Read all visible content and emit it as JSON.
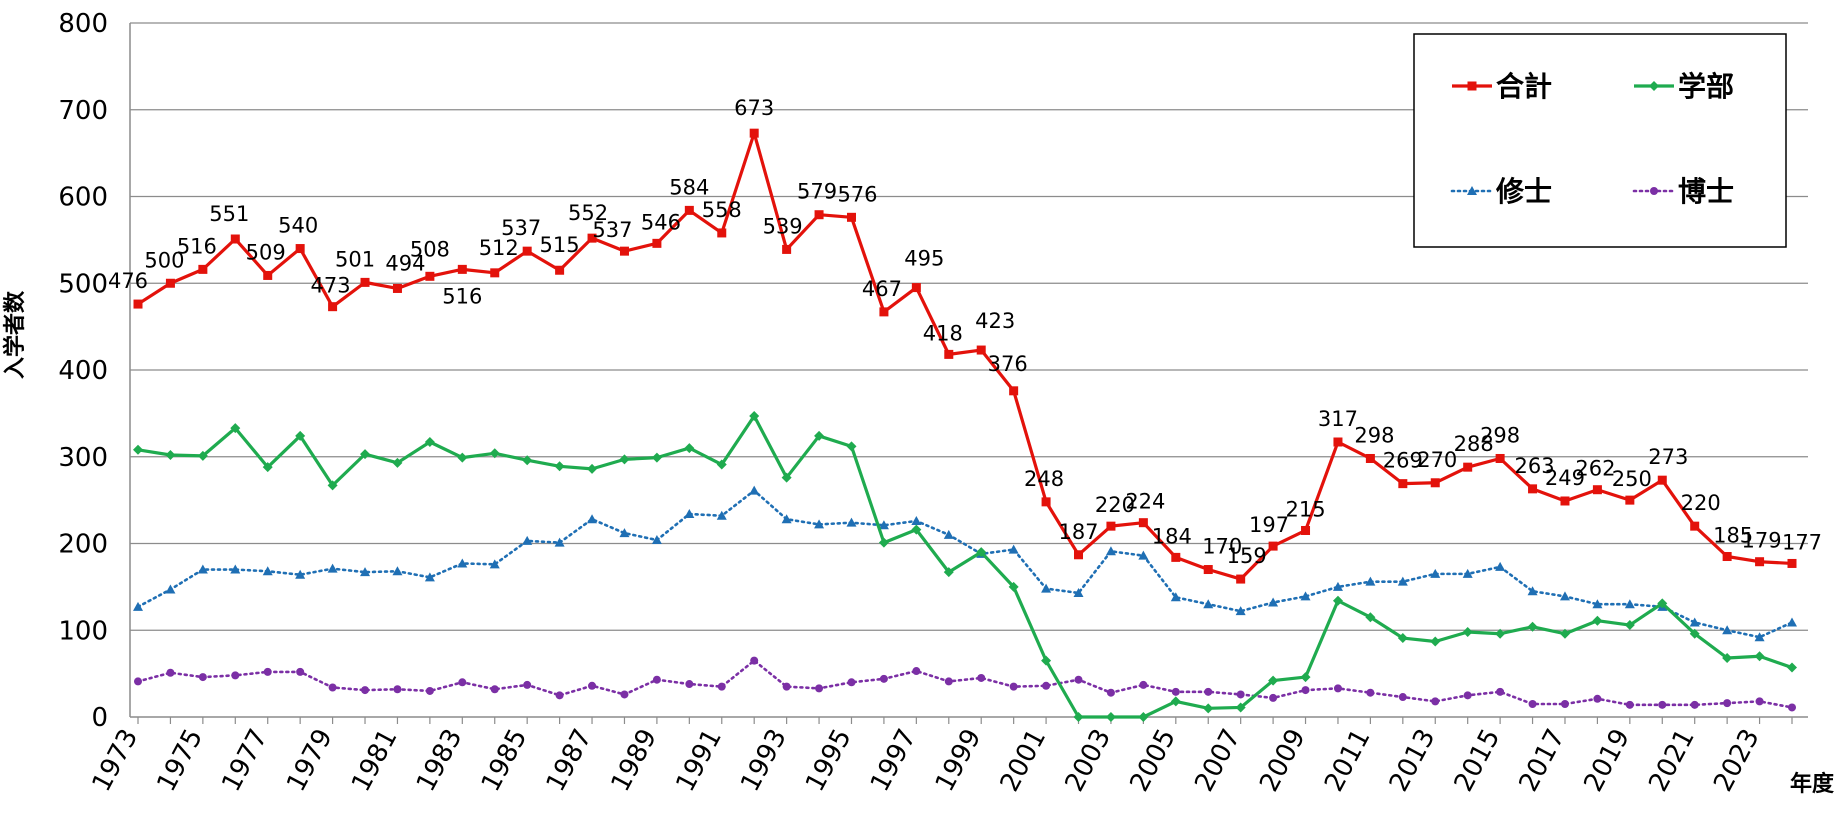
{
  "chart_data": {
    "type": "line",
    "title": "",
    "xlabel": "年度",
    "ylabel": "入学者数",
    "ylim": [
      0,
      800
    ],
    "yticks": [
      0,
      100,
      200,
      300,
      400,
      500,
      600,
      700,
      800
    ],
    "x": [
      1973,
      1974,
      1975,
      1976,
      1977,
      1978,
      1979,
      1980,
      1981,
      1982,
      1983,
      1984,
      1985,
      1986,
      1987,
      1988,
      1989,
      1990,
      1991,
      1992,
      1993,
      1994,
      1995,
      1996,
      1997,
      1998,
      1999,
      2000,
      2001,
      2002,
      2003,
      2004,
      2005,
      2006,
      2007,
      2008,
      2009,
      2010,
      2011,
      2012,
      2013,
      2014,
      2015,
      2016,
      2017,
      2018,
      2019,
      2020,
      2021,
      2022,
      2023,
      2024
    ],
    "xticks": [
      1973,
      1975,
      1977,
      1979,
      1981,
      1983,
      1985,
      1987,
      1989,
      1991,
      1993,
      1995,
      1997,
      1999,
      2001,
      2003,
      2005,
      2007,
      2009,
      2011,
      2013,
      2015,
      2017,
      2019,
      2021,
      2023
    ],
    "grid": true,
    "legend_position": "top-right",
    "series": [
      {
        "name": "合計",
        "color": "#e3120b",
        "style": "solid",
        "marker": "square",
        "labeled": true,
        "values": [
          476,
          500,
          516,
          551,
          509,
          540,
          473,
          501,
          494,
          508,
          516,
          512,
          537,
          515,
          552,
          537,
          546,
          584,
          558,
          673,
          539,
          579,
          576,
          467,
          495,
          418,
          423,
          376,
          248,
          187,
          220,
          224,
          184,
          170,
          159,
          197,
          215,
          317,
          298,
          269,
          270,
          288,
          298,
          263,
          249,
          262,
          250,
          273,
          220,
          185,
          179,
          177
        ]
      },
      {
        "name": "学部",
        "color": "#1fab4f",
        "style": "solid",
        "marker": "diamond",
        "labeled": false,
        "values": [
          308,
          302,
          301,
          333,
          288,
          324,
          267,
          303,
          293,
          317,
          299,
          304,
          296,
          289,
          286,
          297,
          299,
          310,
          291,
          347,
          276,
          324,
          312,
          201,
          216,
          167,
          190,
          150,
          65,
          0,
          0,
          0,
          18,
          10,
          11,
          42,
          46,
          134,
          115,
          91,
          87,
          98,
          96,
          104,
          96,
          111,
          106,
          131,
          96,
          68,
          70,
          57
        ]
      },
      {
        "name": "修士",
        "color": "#1f6fb4",
        "style": "dotted",
        "marker": "triangle",
        "labeled": false,
        "values": [
          127,
          147,
          170,
          170,
          168,
          164,
          171,
          167,
          168,
          161,
          177,
          176,
          203,
          201,
          228,
          212,
          204,
          234,
          232,
          261,
          228,
          222,
          224,
          221,
          226,
          210,
          188,
          193,
          148,
          143,
          191,
          186,
          138,
          130,
          122,
          132,
          139,
          150,
          156,
          156,
          165,
          165,
          173,
          145,
          139,
          130,
          130,
          127,
          109,
          100,
          92,
          109
        ]
      },
      {
        "name": "博士",
        "color": "#7b2fa5",
        "style": "dotted",
        "marker": "circle",
        "labeled": false,
        "values": [
          41,
          51,
          46,
          48,
          52,
          52,
          34,
          31,
          32,
          30,
          40,
          32,
          37,
          25,
          36,
          26,
          43,
          38,
          35,
          65,
          35,
          33,
          40,
          44,
          53,
          41,
          45,
          35,
          36,
          43,
          28,
          37,
          29,
          29,
          26,
          22,
          31,
          33,
          28,
          23,
          18,
          25,
          29,
          15,
          15,
          21,
          14,
          14,
          14,
          16,
          18,
          11
        ]
      }
    ]
  }
}
